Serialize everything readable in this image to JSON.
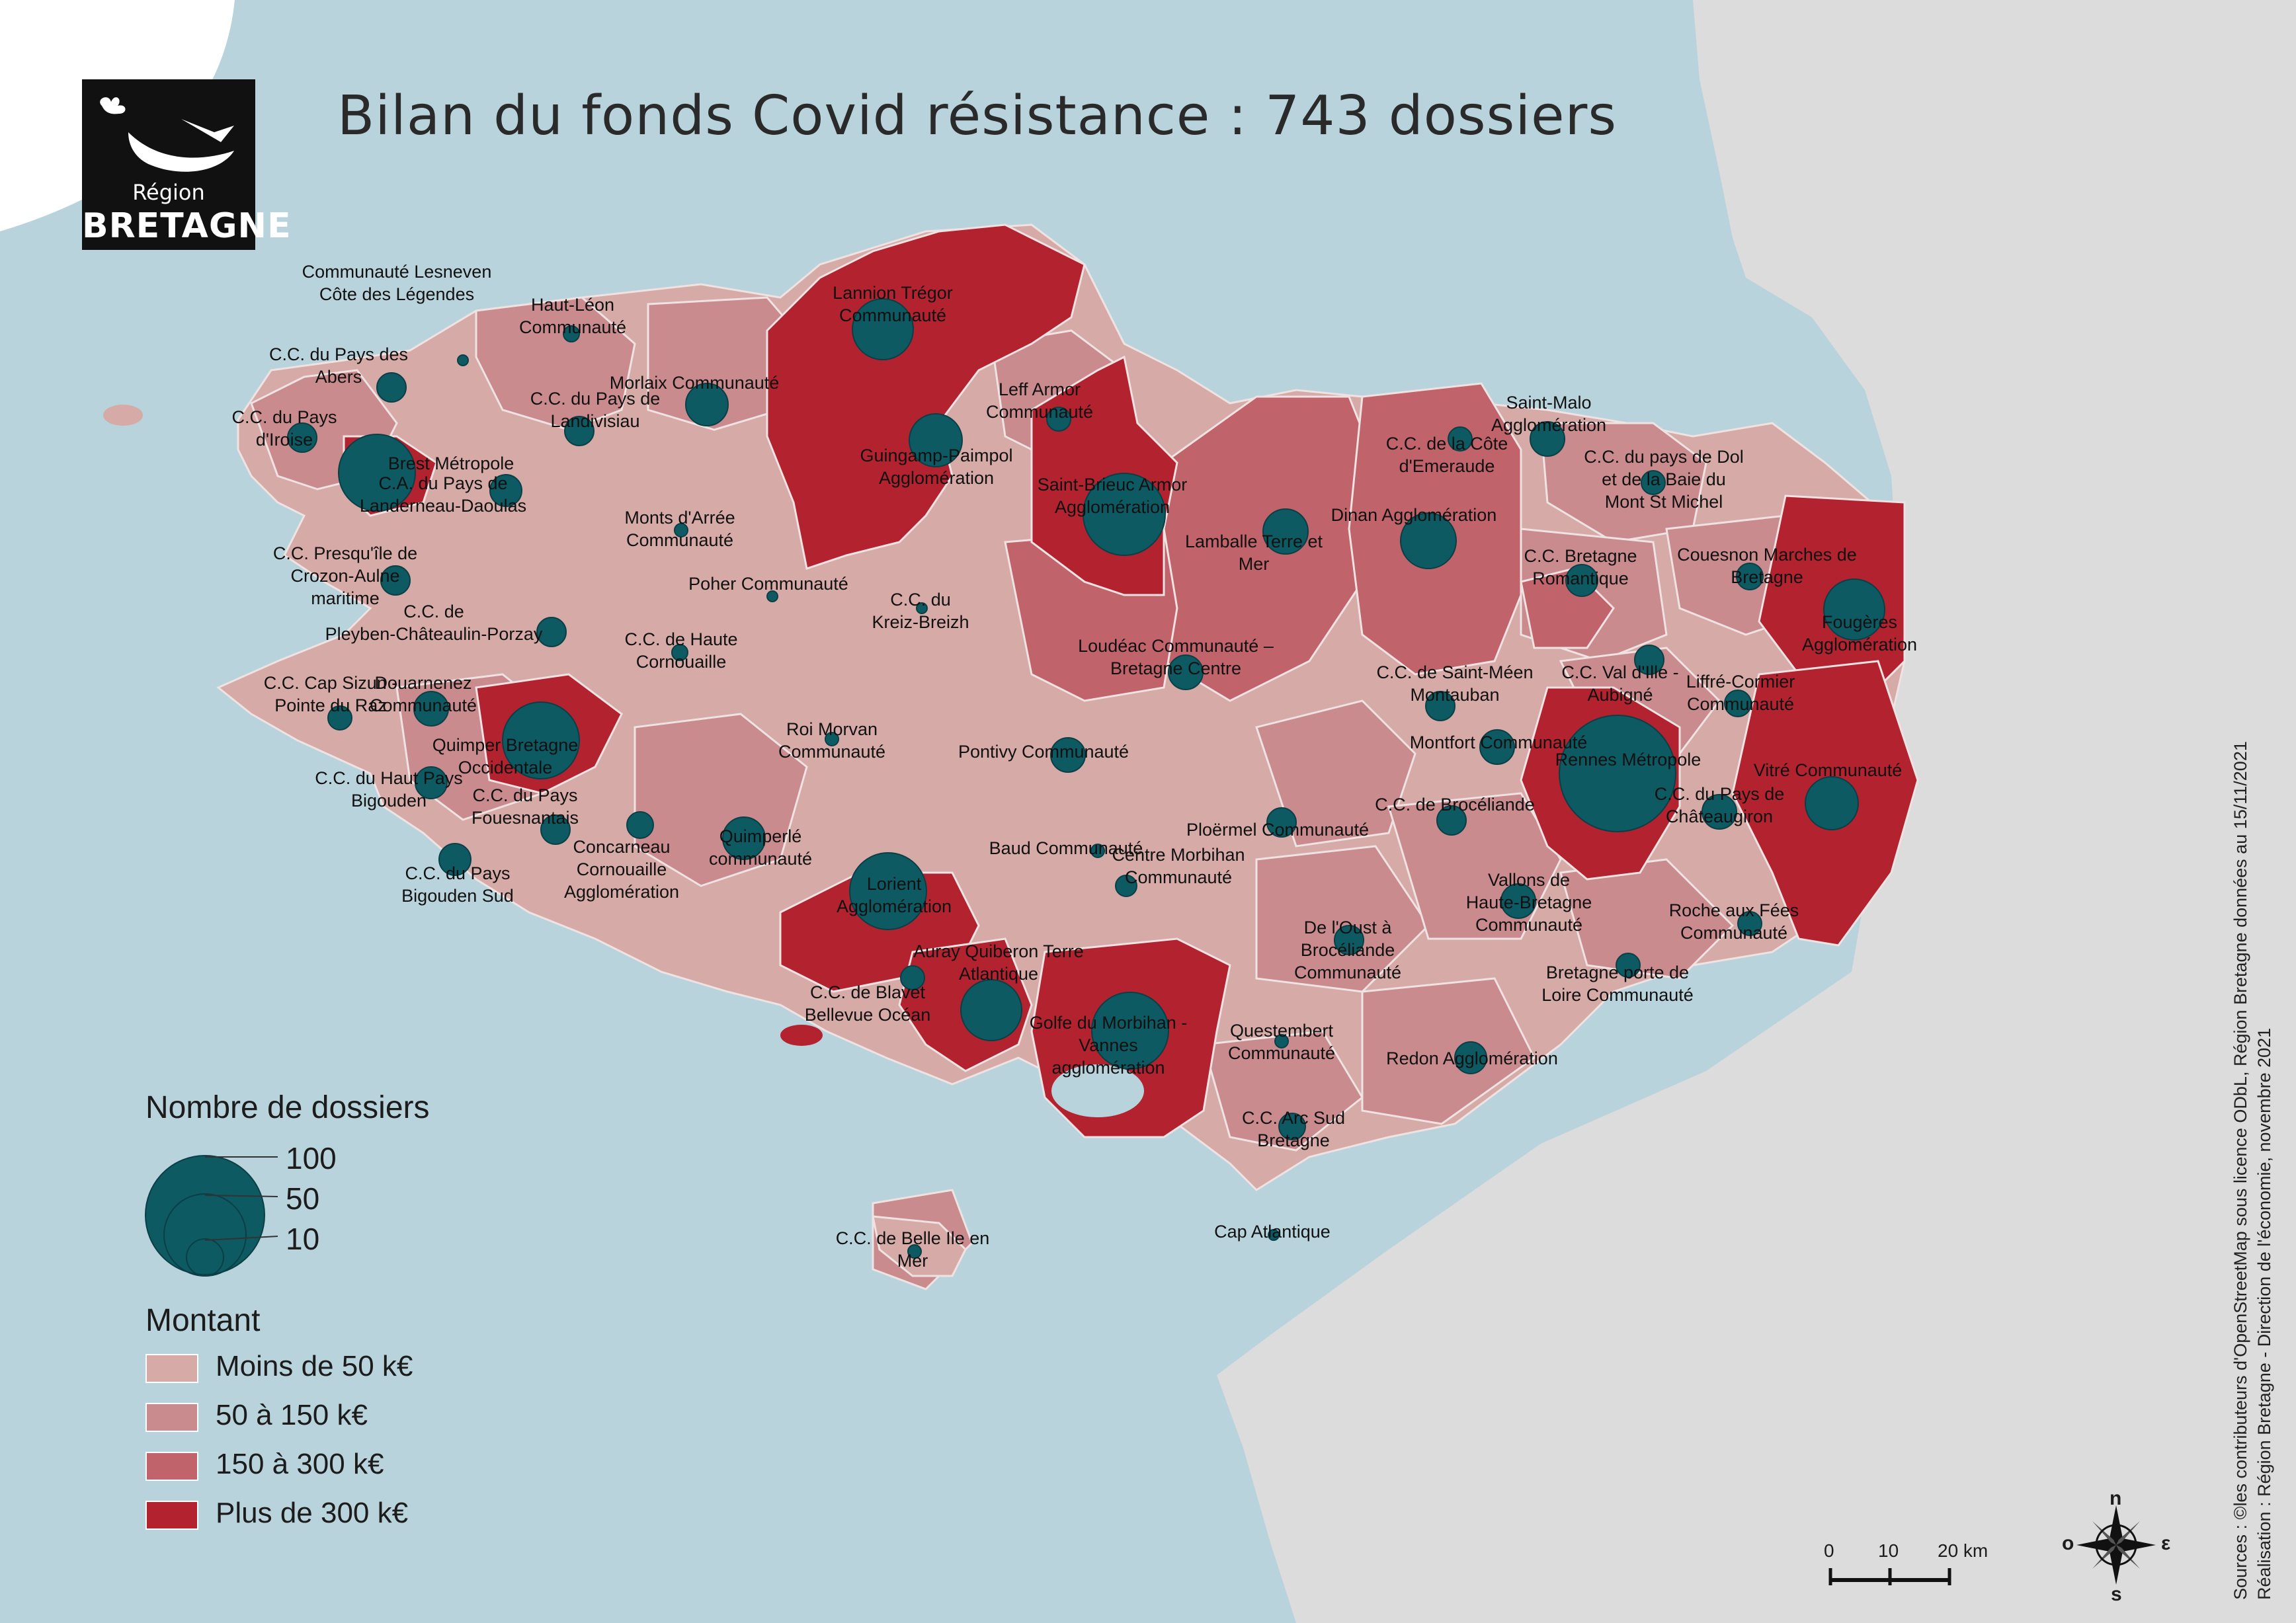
{
  "title": "Bilan du fonds Covid résistance : 743 dossiers",
  "logo": {
    "line1": "Région",
    "line2": "BRETAGNE"
  },
  "colors": {
    "sea": "#b9d3dc",
    "land_outside": "#dcdcdc",
    "class_lt50": "#d6aaa6",
    "class_50_150": "#c98b8d",
    "class_150_300": "#c0636a",
    "class_gt300": "#b3222f",
    "circle": "#0d5a63"
  },
  "legend": {
    "size_title": "Nombre de dossiers",
    "size_values": [
      "100",
      "50",
      "10"
    ],
    "amount_title": "Montant",
    "classes": [
      {
        "label": "Moins de 50 k€",
        "color": "#d6aaa6"
      },
      {
        "label": "50 à 150 k€",
        "color": "#c98b8d"
      },
      {
        "label": "150 à 300 k€",
        "color": "#c0636a"
      },
      {
        "label": "Plus de 300 k€",
        "color": "#b3222f"
      }
    ]
  },
  "scale_bar": {
    "labels": [
      "0",
      "10",
      "20 km"
    ]
  },
  "compass": {
    "n": "n",
    "s": "s",
    "e": "ε",
    "o": "o"
  },
  "credits": {
    "line1": "Sources : ©les contributeurs d'OpenStreetMap sous licence ODbL, Région Bretagne données au 15/11/2021",
    "line2": "Réalisation : Région Bretagne - Direction de l'économie, novembre 2021"
  },
  "epci_labels": [
    "Communauté Lesneven|Côte des Légendes",
    "Haut-Léon|Communauté",
    "C.C. du Pays des|Abers",
    "C.C. du Pays|d'Iroise",
    "Brest Métropole",
    "C.A. du Pays de|Landerneau-Daoulas",
    "C.C. du Pays de|Landivisiau",
    "Morlaix Communauté",
    "Lannion Trégor|Communauté",
    "Leff Armor|Communauté",
    "Guingamp-Paimpol|Agglomération",
    "Saint-Brieuc Armor|Agglomération",
    "Lamballe Terre et|Mer",
    "Dinan Agglomération",
    "C.C. de la Côte|d'Emeraude",
    "Saint-Malo|Agglomération",
    "C.C. du pays de Dol|et de la Baie du|Mont St Michel",
    "Monts d'Arrée|Communauté",
    "C.C. Presqu'île de|Crozon-Aulne|maritime",
    "C.C. de|Pleyben-Châteaulin-Porzay",
    "Poher Communauté",
    "C.C. du|Kreiz-Breizh",
    "C.C. de Haute|Cornouaille",
    "Loudéac Communauté –|Bretagne Centre",
    "C.C. Bretagne|Romantique",
    "Couesnon Marches de|Bretagne",
    "Fougères|Agglomération",
    "C.C. Cap Sizun -|Pointe du Raz",
    "Douarnenez|Communauté",
    "Quimper Bretagne|Occidentale",
    "C.C. du Haut Pays|Bigouden",
    "C.C. du Pays|Fouesnantais",
    "Concarneau|Cornouaille|Agglomération",
    "C.C. du Pays|Bigouden Sud",
    "Roi Morvan|Communauté",
    "Pontivy Communauté",
    "Quimperlé|communauté",
    "Baud Communauté",
    "Centre Morbihan|Communauté",
    "Lorient|Agglomération",
    "C.C. de Saint-Méen|Montauban",
    "C.C. Val d'Ille -|Aubigné",
    "Liffré-Cormier|Communauté",
    "Montfort Communauté",
    "Rennes Métropole",
    "C.C. de Brocéliande",
    "C.C. du Pays de|Châteaugiron",
    "Vitré Communauté",
    "Ploërmel Communauté",
    "Vallons de|Haute-Bretagne|Communauté",
    "Roche aux Fées|Communauté",
    "De l'Oust à|Brocéliande|Communauté",
    "Auray Quiberon Terre|Atlantique",
    "C.C. de Blavet|Bellevue Océan",
    "Golfe du Morbihan -|Vannes|agglomération",
    "Questembert|Communauté",
    "Redon Agglomération",
    "Bretagne porte de|Loire Communauté",
    "C.C. Arc Sud|Bretagne",
    "Cap Atlantique",
    "C.C. de Belle Ile en|Mer"
  ]
}
